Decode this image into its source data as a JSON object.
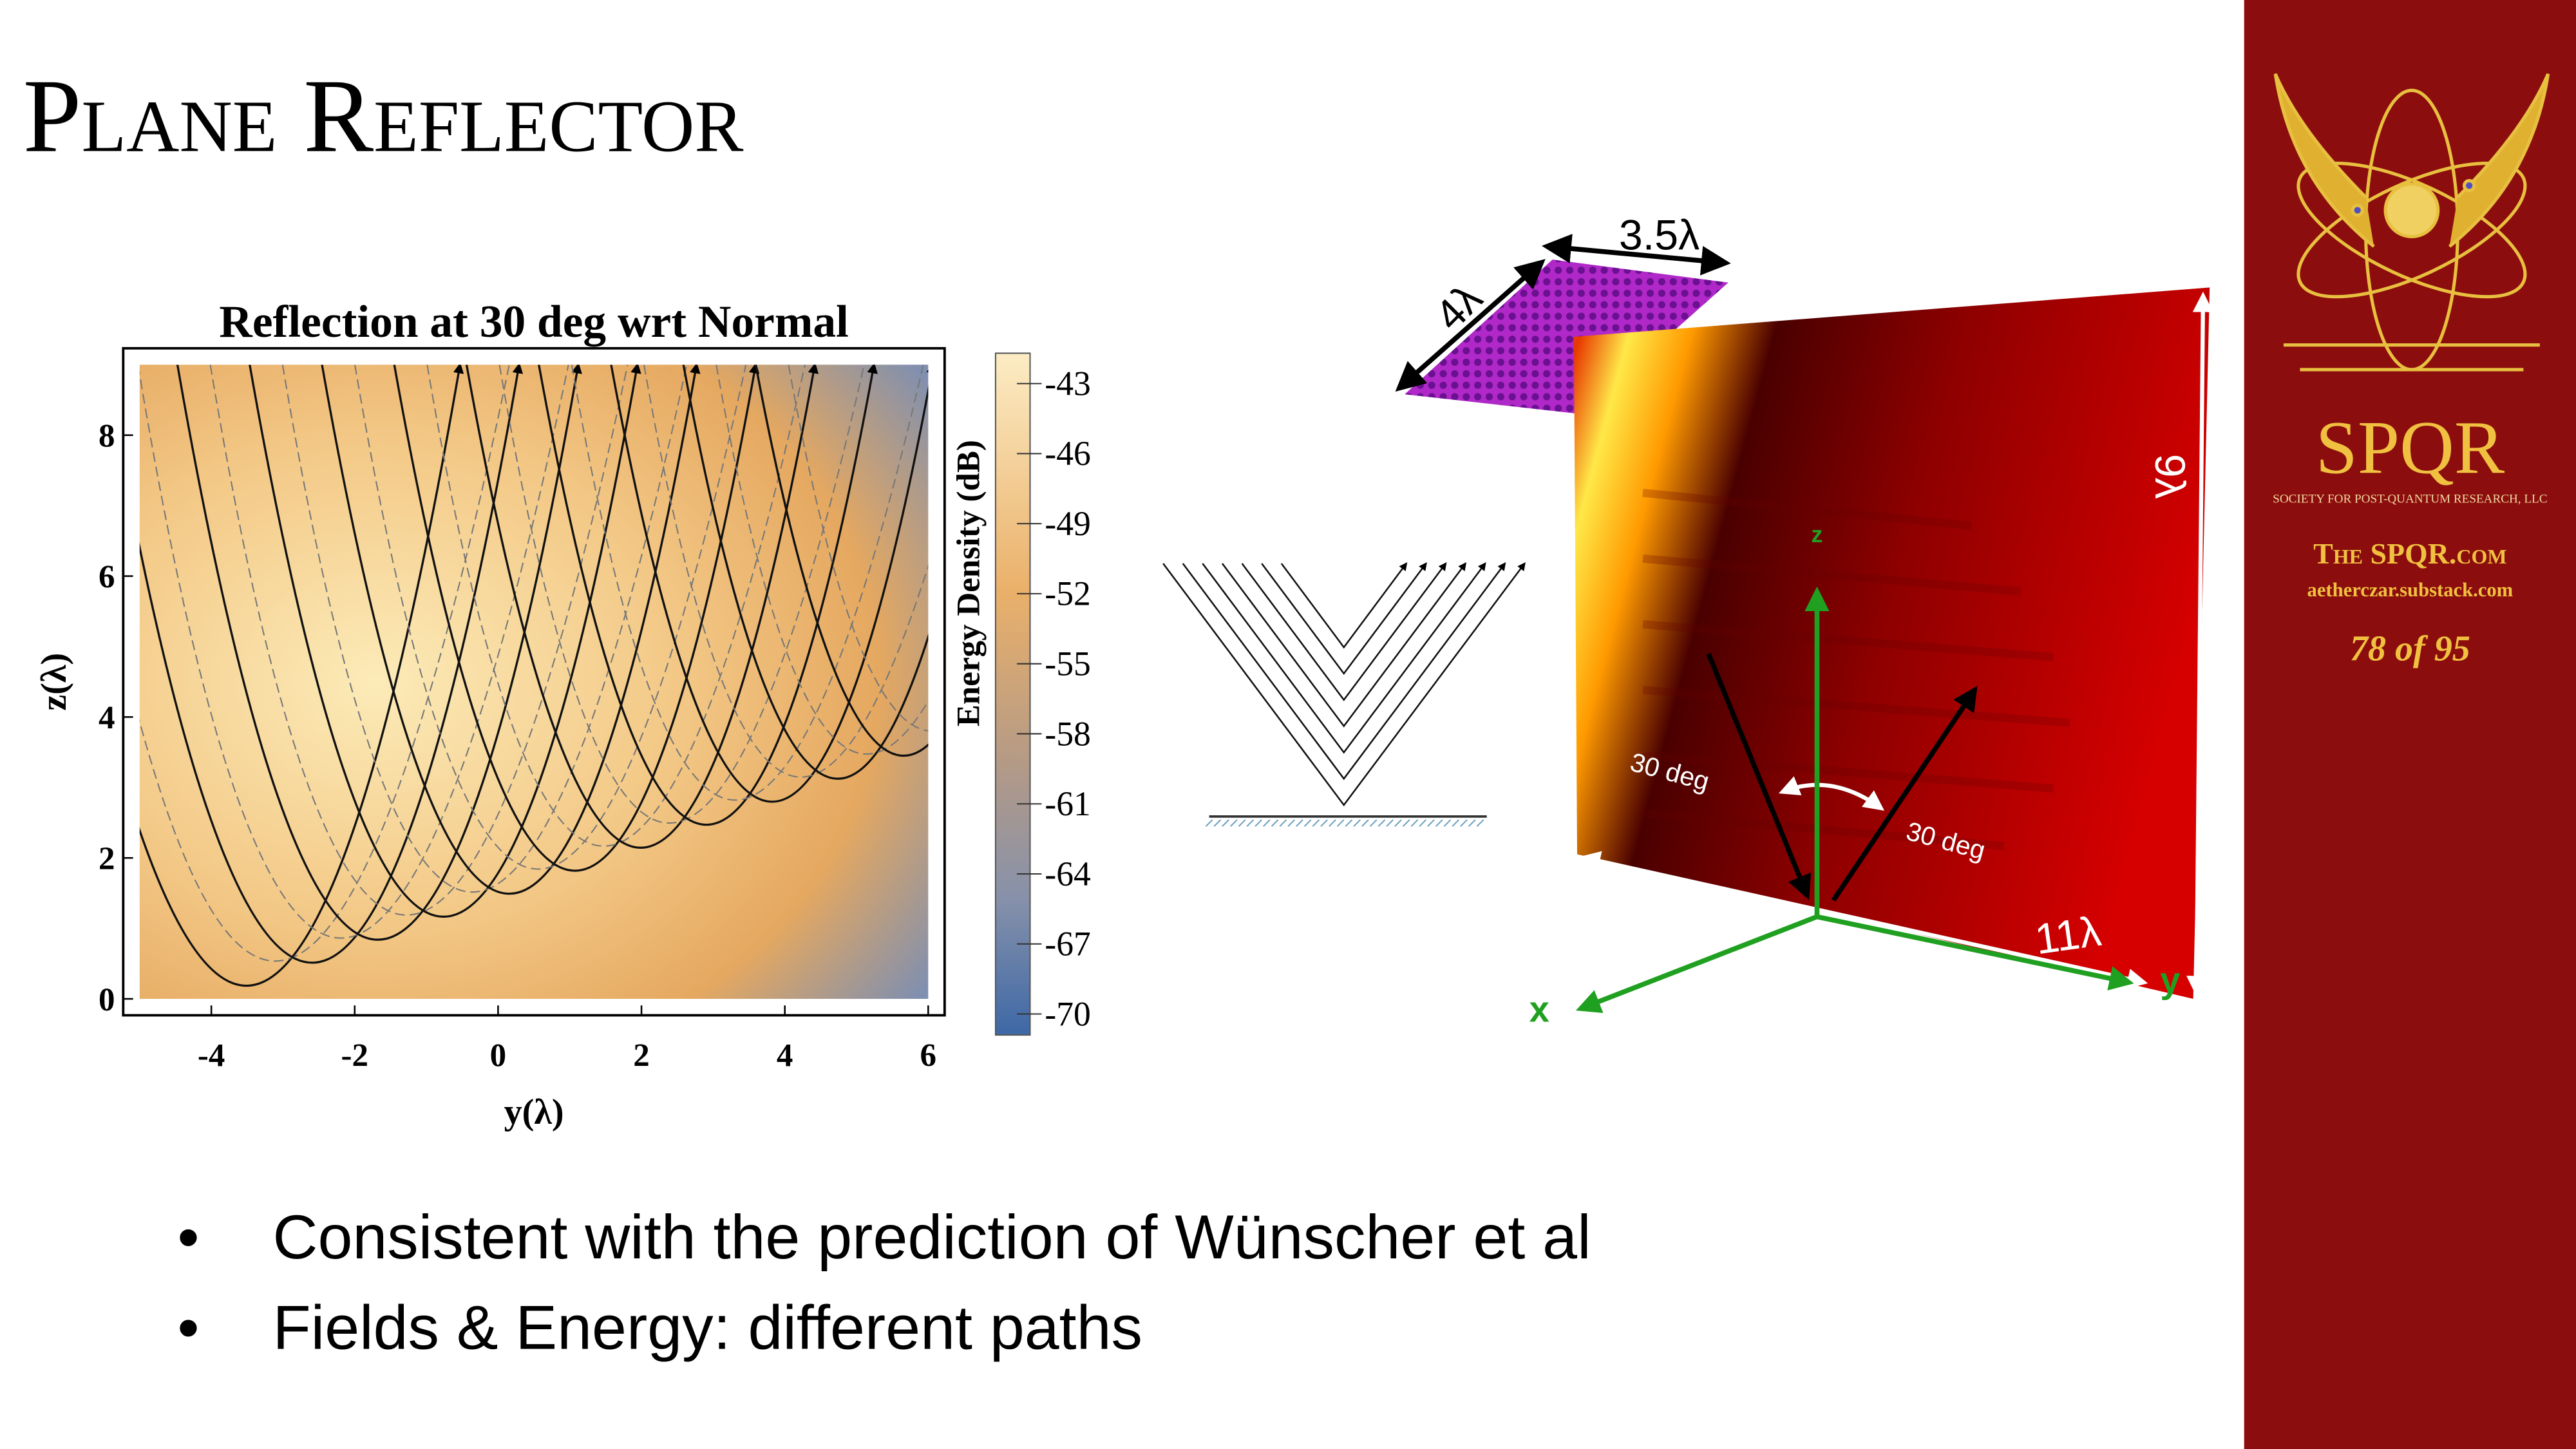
{
  "header": {
    "title": "Plane Reflector"
  },
  "contour_plot": {
    "title": "Reflection at 30 deg wrt Normal",
    "x_label": "y(λ)",
    "y_label": "z(λ)",
    "xlim": [
      -5,
      6
    ],
    "ylim": [
      0,
      9
    ],
    "xticks": [
      -4,
      -2,
      0,
      2,
      4,
      6
    ],
    "yticks": [
      0,
      2,
      4,
      6,
      8
    ],
    "colorbar": {
      "label": "Energy Density (dB)",
      "lim": [
        -41.7,
        -70.9
      ],
      "ticks": [
        -43,
        -46,
        -49,
        -52,
        -55,
        -58,
        -61,
        -64,
        -67,
        -70
      ]
    }
  },
  "field_plot": {
    "width_label": "3.5λ",
    "depth_label": "4λ",
    "height_label": "9λ",
    "length_label": "11λ",
    "incident_angle": "30 deg",
    "reflected_angle": "30 deg",
    "axes": [
      "x",
      "y",
      "z"
    ]
  },
  "bullets": [
    "Consistent with the prediction of Wünscher et al",
    "Fields & Energy: different paths"
  ],
  "sidebar": {
    "brand": "SPQR",
    "organization": "SOCIETY FOR POST-QUANTUM RESEARCH, LLC",
    "website": "The SPQR.com",
    "substack": "aetherczar.substack.com",
    "page": "78 of 95"
  }
}
